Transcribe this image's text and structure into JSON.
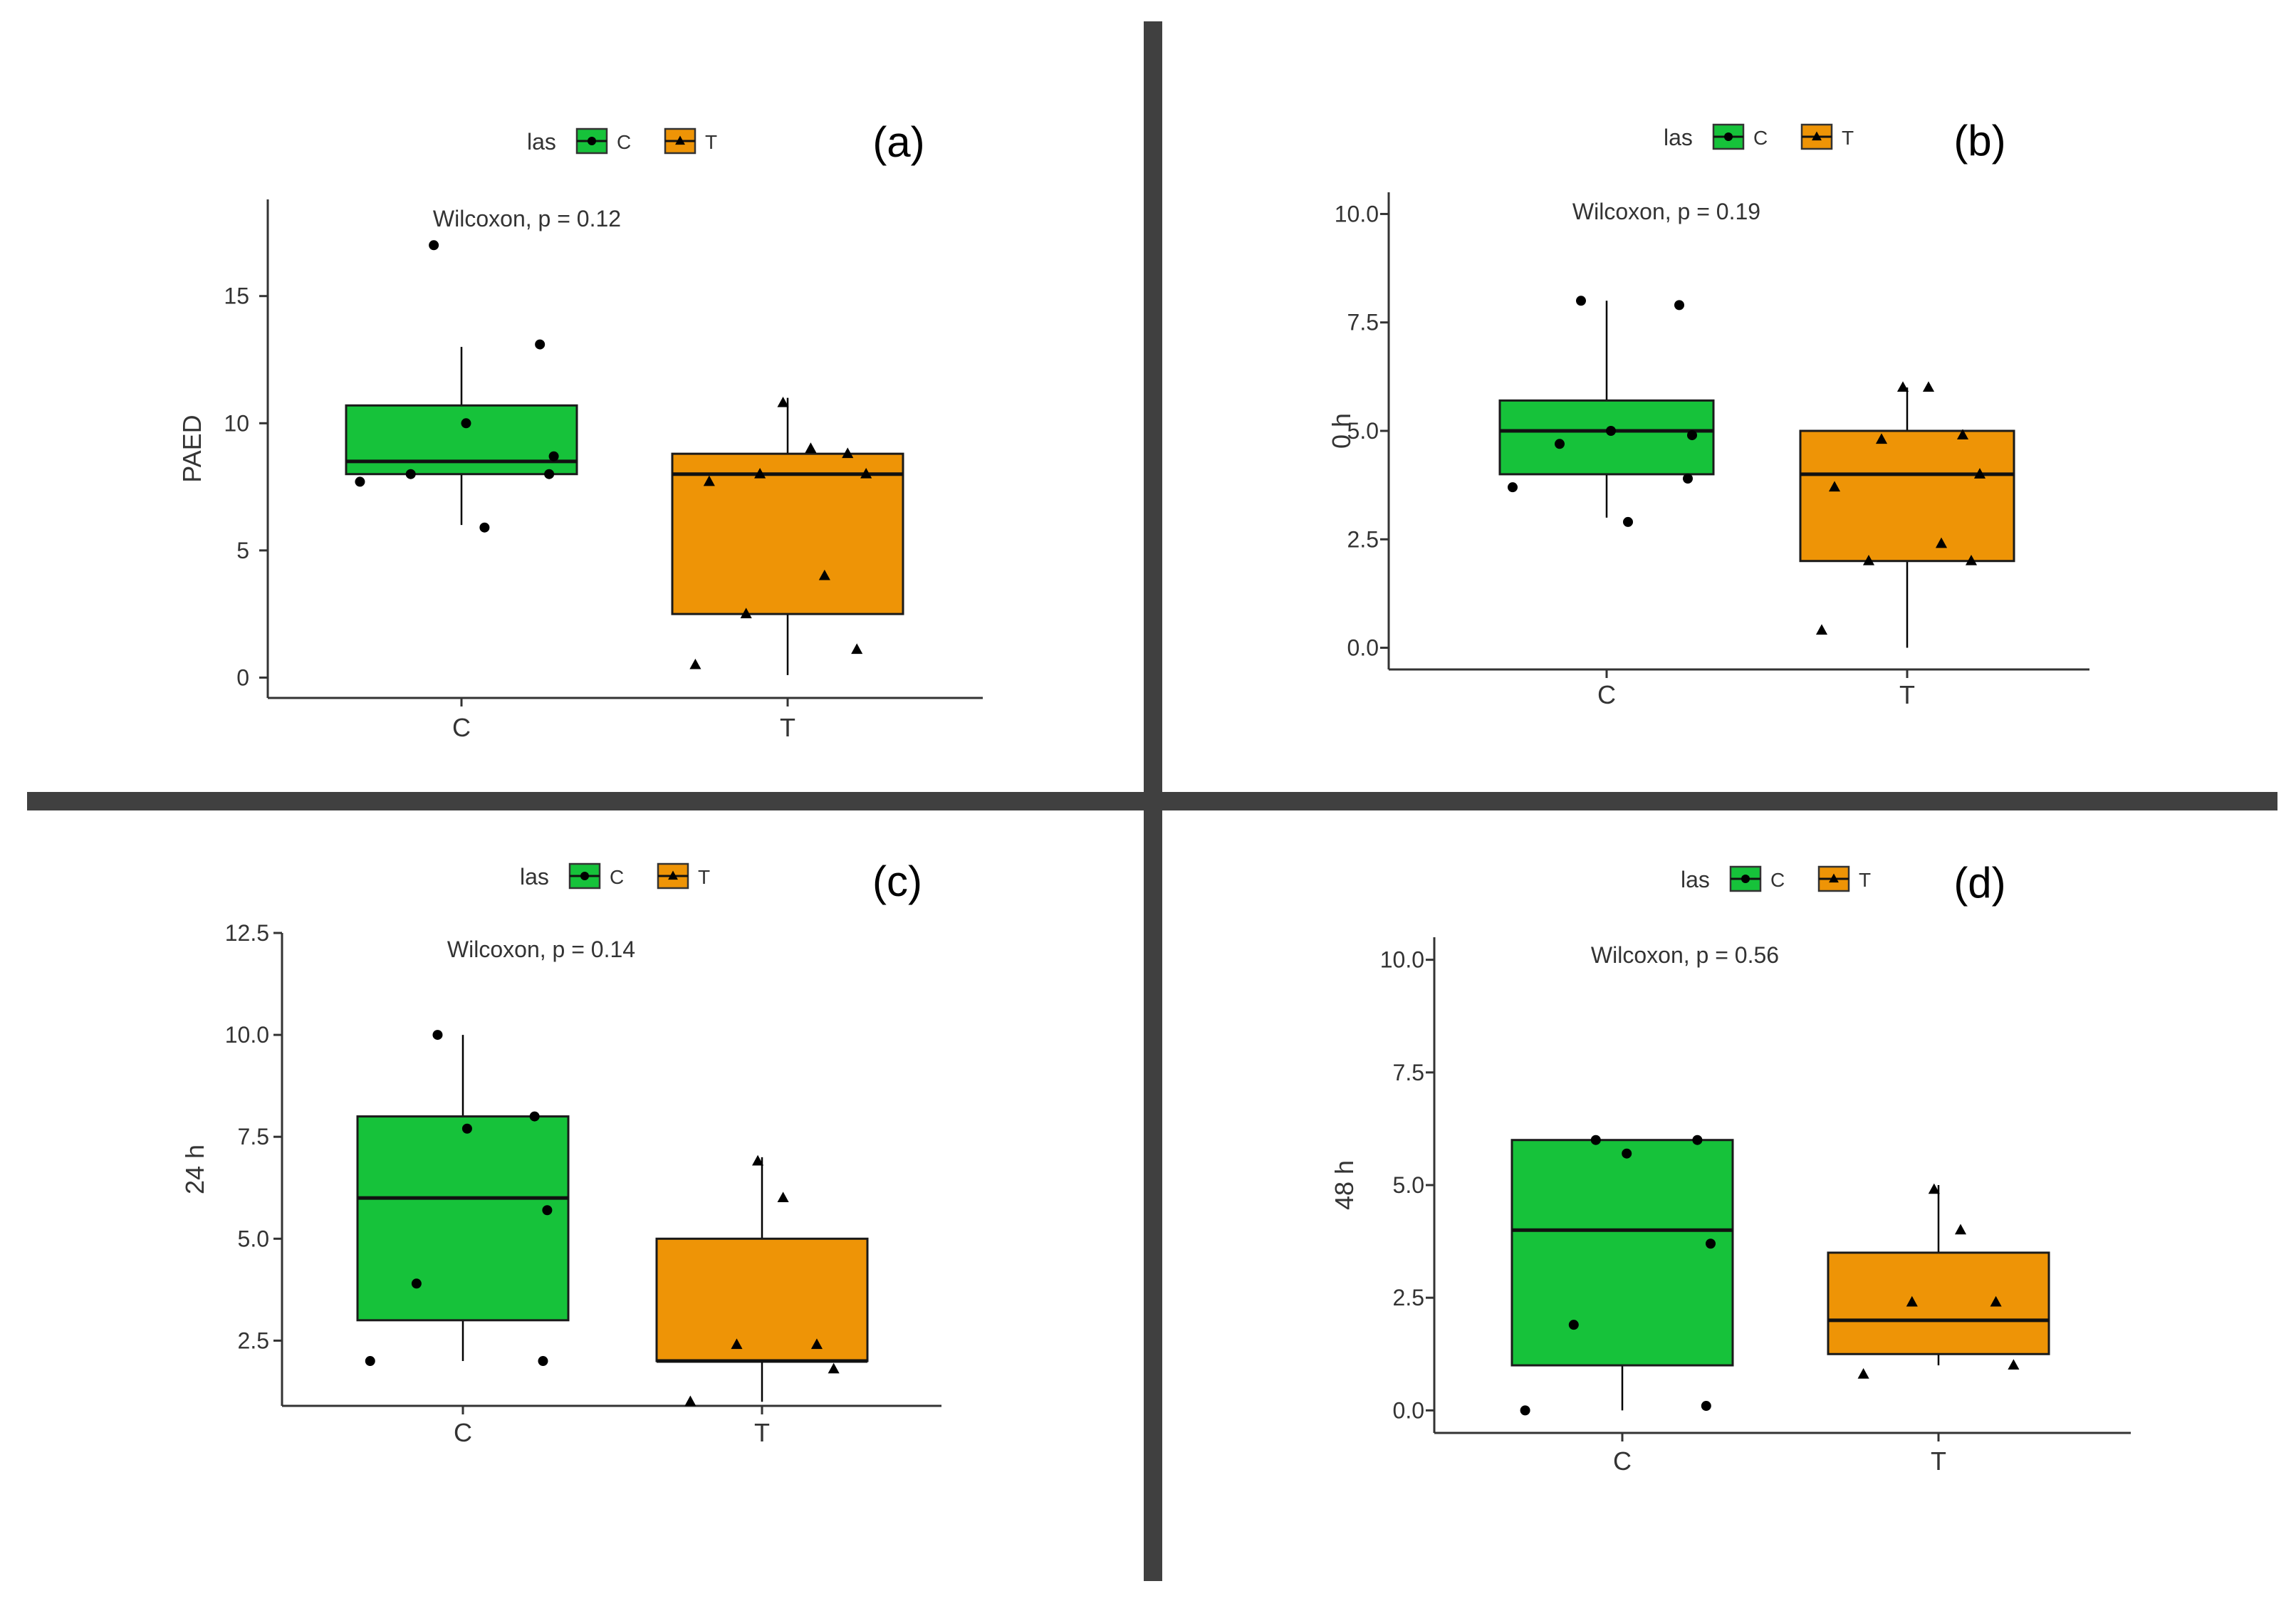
{
  "colors": {
    "C": "#16C23A",
    "T": "#EE9406",
    "divider": "#404040",
    "axis": "#333333",
    "text": "#333333"
  },
  "chart_data": [
    {
      "type": "boxplot",
      "panel_label": "(a)",
      "ylabel": "PAED",
      "categories": [
        "C",
        "T"
      ],
      "legend": {
        "title": "las",
        "entries": [
          "C",
          "T"
        ],
        "position": "top"
      },
      "annotation": "Wilcoxon, p = 0.12",
      "ylim": [
        -0.8,
        18.8
      ],
      "yticks": [
        0,
        5,
        10,
        15
      ],
      "ytick_labels": [
        "0",
        "5",
        "10",
        "15"
      ],
      "boxes": [
        {
          "group": "C",
          "whisker_low": 6.0,
          "q1": 8.0,
          "median": 8.5,
          "q3": 10.7,
          "whisker_high": 13.0
        },
        {
          "group": "T",
          "whisker_low": 0.1,
          "q1": 2.5,
          "median": 8.0,
          "q3": 8.8,
          "whisker_high": 11.0
        }
      ],
      "points": [
        {
          "group": "C",
          "values": [
            17.0,
            13.1,
            10.0,
            8.7,
            8.0,
            8.0,
            7.7,
            5.9
          ]
        },
        {
          "group": "T",
          "values": [
            10.8,
            9.0,
            8.8,
            8.0,
            8.0,
            7.7,
            4.0,
            2.5,
            1.1,
            0.5
          ]
        }
      ]
    },
    {
      "type": "boxplot",
      "panel_label": "(b)",
      "ylabel": "0 h",
      "categories": [
        "C",
        "T"
      ],
      "legend": {
        "title": "las",
        "entries": [
          "C",
          "T"
        ],
        "position": "top"
      },
      "annotation": "Wilcoxon, p = 0.19",
      "ylim": [
        -0.5,
        10.5
      ],
      "yticks": [
        0,
        2.5,
        5,
        7.5,
        10
      ],
      "ytick_labels": [
        "0.0",
        "2.5",
        "5.0",
        "7.5",
        "10.0"
      ],
      "boxes": [
        {
          "group": "C",
          "whisker_low": 3.0,
          "q1": 4.0,
          "median": 5.0,
          "q3": 5.7,
          "whisker_high": 8.0
        },
        {
          "group": "T",
          "whisker_low": 0.0,
          "q1": 2.0,
          "median": 4.0,
          "q3": 5.0,
          "whisker_high": 6.0
        }
      ],
      "points": [
        {
          "group": "C",
          "values": [
            8.0,
            7.9,
            5.0,
            4.9,
            4.7,
            3.9,
            3.7,
            2.9
          ]
        },
        {
          "group": "T",
          "values": [
            6.0,
            6.0,
            4.9,
            4.8,
            4.0,
            3.7,
            2.4,
            2.0,
            2.0,
            0.4
          ]
        }
      ]
    },
    {
      "type": "boxplot",
      "panel_label": "(c)",
      "ylabel": "24 h",
      "categories": [
        "C",
        "T"
      ],
      "legend": {
        "title": "las",
        "entries": [
          "C",
          "T"
        ],
        "position": "top"
      },
      "annotation": "Wilcoxon, p = 0.14",
      "ylim": [
        0.9,
        12.5
      ],
      "yticks": [
        2.5,
        5,
        7.5,
        10,
        12.5
      ],
      "ytick_labels": [
        "2.5",
        "5.0",
        "7.5",
        "10.0",
        "12.5"
      ],
      "boxes": [
        {
          "group": "C",
          "whisker_low": 2.0,
          "q1": 3.0,
          "median": 6.0,
          "q3": 8.0,
          "whisker_high": 10.0
        },
        {
          "group": "T",
          "whisker_low": 1.0,
          "q1": 2.0,
          "median": 2.0,
          "q3": 5.0,
          "whisker_high": 7.0
        }
      ],
      "points": [
        {
          "group": "C",
          "values": [
            10.0,
            8.0,
            7.7,
            5.7,
            3.9,
            2.0,
            2.0
          ]
        },
        {
          "group": "T",
          "values": [
            6.9,
            6.0,
            2.4,
            2.4,
            1.8,
            1.0
          ]
        }
      ]
    },
    {
      "type": "boxplot",
      "panel_label": "(d)",
      "ylabel": "48 h",
      "categories": [
        "C",
        "T"
      ],
      "legend": {
        "title": "las",
        "entries": [
          "C",
          "T"
        ],
        "position": "top"
      },
      "annotation": "Wilcoxon, p = 0.56",
      "ylim": [
        -0.5,
        10.5
      ],
      "yticks": [
        0,
        2.5,
        5,
        7.5,
        10
      ],
      "ytick_labels": [
        "0.0",
        "2.5",
        "5.0",
        "7.5",
        "10.0"
      ],
      "boxes": [
        {
          "group": "C",
          "whisker_low": 0.0,
          "q1": 1.0,
          "median": 4.0,
          "q3": 6.0,
          "whisker_high": 6.0
        },
        {
          "group": "T",
          "whisker_low": 1.0,
          "q1": 1.25,
          "median": 2.0,
          "q3": 3.5,
          "whisker_high": 5.0
        }
      ],
      "points": [
        {
          "group": "C",
          "values": [
            6.0,
            6.0,
            5.7,
            3.7,
            1.9,
            0.1,
            0.0
          ]
        },
        {
          "group": "T",
          "values": [
            4.9,
            4.0,
            2.4,
            2.4,
            1.0,
            0.8
          ]
        }
      ]
    }
  ]
}
